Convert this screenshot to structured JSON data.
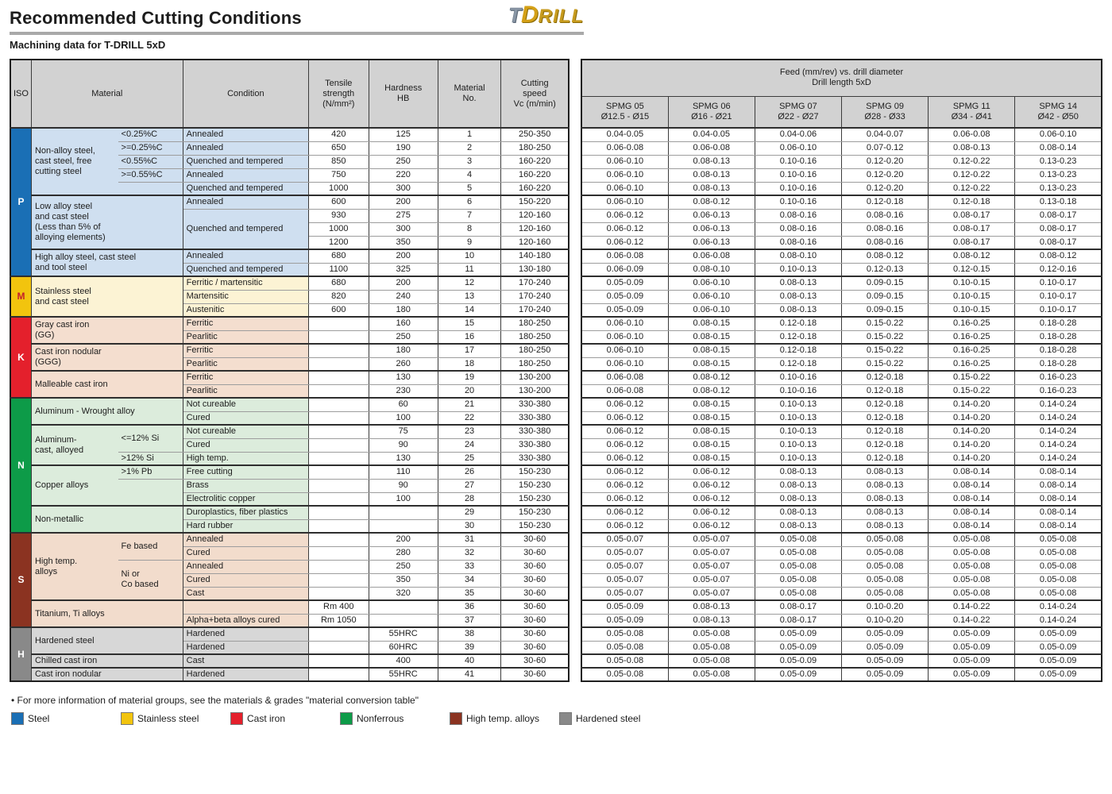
{
  "page": {
    "title": "Recommended Cutting Conditions",
    "subtitle": "Machining data for T-DRILL 5xD",
    "logo": {
      "t": "T",
      "d": "D",
      "rest": "RILL"
    }
  },
  "left_header": {
    "iso": "ISO",
    "material": "Material",
    "condition": "Condition",
    "tensile": "Tensile\nstrength\n(N/mm²)",
    "hardness": "Hardness\nHB",
    "material_no": "Material\nNo.",
    "cutting_speed": "Cutting\nspeed\nVc (m/min)"
  },
  "feed_header": {
    "line1": "Feed (mm/rev) vs. drill diameter",
    "line2": "Drill length 5xD",
    "columns": [
      {
        "name": "SPMG 05",
        "range": "Ø12.5 - Ø15"
      },
      {
        "name": "SPMG 06",
        "range": "Ø16 - Ø21"
      },
      {
        "name": "SPMG 07",
        "range": "Ø22 - Ø27"
      },
      {
        "name": "SPMG 09",
        "range": "Ø28 - Ø33"
      },
      {
        "name": "SPMG 11",
        "range": "Ø34 - Ø41"
      },
      {
        "name": "SPMG 14",
        "range": "Ø42 - Ø50"
      }
    ]
  },
  "sections": [
    {
      "letter": "P",
      "start": 0,
      "count": 11,
      "color": "#1a6fb5",
      "letter_color": "#ffffff",
      "light": "#cfdff0"
    },
    {
      "letter": "M",
      "start": 11,
      "count": 3,
      "color": "#f2c40e",
      "letter_color": "#c5202a",
      "light": "#fcf3d4"
    },
    {
      "letter": "K",
      "start": 14,
      "count": 6,
      "color": "#e4202c",
      "letter_color": "#ffffff",
      "light": "#f4decf"
    },
    {
      "letter": "N",
      "start": 20,
      "count": 10,
      "color": "#0d9b48",
      "letter_color": "#ffffff",
      "light": "#dcecdc"
    },
    {
      "letter": "S",
      "start": 30,
      "count": 7,
      "color": "#8b3321",
      "letter_color": "#ffffff",
      "light": "#f2dccc"
    },
    {
      "letter": "H",
      "start": 37,
      "count": 4,
      "color": "#898989",
      "letter_color": "#ffffff",
      "light": "#d7d7d7"
    }
  ],
  "group_starts": [
    0,
    5,
    9,
    11,
    14,
    16,
    18,
    20,
    22,
    25,
    28,
    30,
    35,
    37,
    39,
    40
  ],
  "rows": [
    {
      "m": {
        "t": "Non-alloy steel,\ncast steel, free\ncutting steel",
        "s": 5,
        "c": 1
      },
      "sb": {
        "t": "<0.25%C"
      },
      "cd": {
        "t": "Annealed"
      },
      "ten": "420",
      "hb": "125",
      "no": "1",
      "vc": "250-350",
      "f": [
        "0.04-0.05",
        "0.04-0.05",
        "0.04-0.06",
        "0.04-0.07",
        "0.06-0.08",
        "0.06-0.10"
      ]
    },
    {
      "sb": {
        "t": ">=0.25%C"
      },
      "cd": {
        "t": "Annealed"
      },
      "ten": "650",
      "hb": "190",
      "no": "2",
      "vc": "180-250",
      "f": [
        "0.06-0.08",
        "0.06-0.08",
        "0.06-0.10",
        "0.07-0.12",
        "0.08-0.13",
        "0.08-0.14"
      ]
    },
    {
      "sb": {
        "t": "<0.55%C"
      },
      "cd": {
        "t": "Quenched and tempered"
      },
      "ten": "850",
      "hb": "250",
      "no": "3",
      "vc": "160-220",
      "f": [
        "0.06-0.10",
        "0.08-0.13",
        "0.10-0.16",
        "0.12-0.20",
        "0.12-0.22",
        "0.13-0.23"
      ]
    },
    {
      "sb": {
        "t": ">=0.55%C"
      },
      "cd": {
        "t": "Annealed"
      },
      "ten": "750",
      "hb": "220",
      "no": "4",
      "vc": "160-220",
      "f": [
        "0.06-0.10",
        "0.08-0.13",
        "0.10-0.16",
        "0.12-0.20",
        "0.12-0.22",
        "0.13-0.23"
      ]
    },
    {
      "sb": {
        "t": ""
      },
      "cd": {
        "t": "Quenched and tempered"
      },
      "ten": "1000",
      "hb": "300",
      "no": "5",
      "vc": "160-220",
      "f": [
        "0.06-0.10",
        "0.08-0.13",
        "0.10-0.16",
        "0.12-0.20",
        "0.12-0.22",
        "0.13-0.23"
      ]
    },
    {
      "m": {
        "t": "Low alloy steel\nand cast steel\n(Less than 5% of\nalloying elements)",
        "s": 4,
        "c": 2
      },
      "cd": {
        "t": "Annealed"
      },
      "ten": "600",
      "hb": "200",
      "no": "6",
      "vc": "150-220",
      "f": [
        "0.06-0.10",
        "0.08-0.12",
        "0.10-0.16",
        "0.12-0.18",
        "0.12-0.18",
        "0.13-0.18"
      ]
    },
    {
      "cd": {
        "t": "Quenched and tempered",
        "s": 3
      },
      "ten": "930",
      "hb": "275",
      "no": "7",
      "vc": "120-160",
      "f": [
        "0.06-0.12",
        "0.06-0.13",
        "0.08-0.16",
        "0.08-0.16",
        "0.08-0.17",
        "0.08-0.17"
      ]
    },
    {
      "ten": "1000",
      "hb": "300",
      "no": "8",
      "vc": "120-160",
      "f": [
        "0.06-0.12",
        "0.06-0.13",
        "0.08-0.16",
        "0.08-0.16",
        "0.08-0.17",
        "0.08-0.17"
      ]
    },
    {
      "ten": "1200",
      "hb": "350",
      "no": "9",
      "vc": "120-160",
      "f": [
        "0.06-0.12",
        "0.06-0.13",
        "0.08-0.16",
        "0.08-0.16",
        "0.08-0.17",
        "0.08-0.17"
      ]
    },
    {
      "m": {
        "t": "High alloy steel, cast steel\nand tool steel",
        "s": 2,
        "c": 2
      },
      "cd": {
        "t": "Annealed"
      },
      "ten": "680",
      "hb": "200",
      "no": "10",
      "vc": "140-180",
      "f": [
        "0.06-0.08",
        "0.06-0.08",
        "0.08-0.10",
        "0.08-0.12",
        "0.08-0.12",
        "0.08-0.12"
      ]
    },
    {
      "cd": {
        "t": "Quenched and tempered"
      },
      "ten": "1100",
      "hb": "325",
      "no": "11",
      "vc": "130-180",
      "f": [
        "0.06-0.09",
        "0.08-0.10",
        "0.10-0.13",
        "0.12-0.13",
        "0.12-0.15",
        "0.12-0.16"
      ]
    },
    {
      "m": {
        "t": "Stainless steel\nand cast steel",
        "s": 3,
        "c": 2
      },
      "cd": {
        "t": "Ferritic / martensitic"
      },
      "ten": "680",
      "hb": "200",
      "no": "12",
      "vc": "170-240",
      "f": [
        "0.05-0.09",
        "0.06-0.10",
        "0.08-0.13",
        "0.09-0.15",
        "0.10-0.15",
        "0.10-0.17"
      ]
    },
    {
      "cd": {
        "t": "Martensitic"
      },
      "ten": "820",
      "hb": "240",
      "no": "13",
      "vc": "170-240",
      "f": [
        "0.05-0.09",
        "0.06-0.10",
        "0.08-0.13",
        "0.09-0.15",
        "0.10-0.15",
        "0.10-0.17"
      ]
    },
    {
      "cd": {
        "t": "Austenitic"
      },
      "ten": "600",
      "hb": "180",
      "no": "14",
      "vc": "170-240",
      "f": [
        "0.05-0.09",
        "0.06-0.10",
        "0.08-0.13",
        "0.09-0.15",
        "0.10-0.15",
        "0.10-0.17"
      ]
    },
    {
      "m": {
        "t": "Gray cast iron\n(GG)",
        "s": 2,
        "c": 2
      },
      "cd": {
        "t": "Ferritic"
      },
      "ten": "",
      "hb": "160",
      "no": "15",
      "vc": "180-250",
      "f": [
        "0.06-0.10",
        "0.08-0.15",
        "0.12-0.18",
        "0.15-0.22",
        "0.16-0.25",
        "0.18-0.28"
      ]
    },
    {
      "cd": {
        "t": "Pearlitic"
      },
      "ten": "",
      "hb": "250",
      "no": "16",
      "vc": "180-250",
      "f": [
        "0.06-0.10",
        "0.08-0.15",
        "0.12-0.18",
        "0.15-0.22",
        "0.16-0.25",
        "0.18-0.28"
      ]
    },
    {
      "m": {
        "t": "Cast iron nodular\n(GGG)",
        "s": 2,
        "c": 2
      },
      "cd": {
        "t": "Ferritic"
      },
      "ten": "",
      "hb": "180",
      "no": "17",
      "vc": "180-250",
      "f": [
        "0.06-0.10",
        "0.08-0.15",
        "0.12-0.18",
        "0.15-0.22",
        "0.16-0.25",
        "0.18-0.28"
      ]
    },
    {
      "cd": {
        "t": "Pearlitic"
      },
      "ten": "",
      "hb": "260",
      "no": "18",
      "vc": "180-250",
      "f": [
        "0.06-0.10",
        "0.08-0.15",
        "0.12-0.18",
        "0.15-0.22",
        "0.16-0.25",
        "0.18-0.28"
      ]
    },
    {
      "m": {
        "t": "Malleable cast iron",
        "s": 2,
        "c": 2
      },
      "cd": {
        "t": "Ferritic"
      },
      "ten": "",
      "hb": "130",
      "no": "19",
      "vc": "130-200",
      "f": [
        "0.06-0.08",
        "0.08-0.12",
        "0.10-0.16",
        "0.12-0.18",
        "0.15-0.22",
        "0.16-0.23"
      ]
    },
    {
      "cd": {
        "t": "Pearlitic"
      },
      "ten": "",
      "hb": "230",
      "no": "20",
      "vc": "130-200",
      "f": [
        "0.06-0.08",
        "0.08-0.12",
        "0.10-0.16",
        "0.12-0.18",
        "0.15-0.22",
        "0.16-0.23"
      ]
    },
    {
      "m": {
        "t": "Aluminum - Wrought alloy",
        "s": 2,
        "c": 2
      },
      "cd": {
        "t": "Not cureable"
      },
      "ten": "",
      "hb": "60",
      "no": "21",
      "vc": "330-380",
      "f": [
        "0.06-0.12",
        "0.08-0.15",
        "0.10-0.13",
        "0.12-0.18",
        "0.14-0.20",
        "0.14-0.24"
      ]
    },
    {
      "cd": {
        "t": "Cured"
      },
      "ten": "",
      "hb": "100",
      "no": "22",
      "vc": "330-380",
      "f": [
        "0.06-0.12",
        "0.08-0.15",
        "0.10-0.13",
        "0.12-0.18",
        "0.14-0.20",
        "0.14-0.24"
      ]
    },
    {
      "m": {
        "t": "Aluminum-\ncast, alloyed",
        "s": 3,
        "c": 1
      },
      "sb": {
        "t": "<=12% Si",
        "s": 2
      },
      "cd": {
        "t": "Not cureable"
      },
      "ten": "",
      "hb": "75",
      "no": "23",
      "vc": "330-380",
      "f": [
        "0.06-0.12",
        "0.08-0.15",
        "0.10-0.13",
        "0.12-0.18",
        "0.14-0.20",
        "0.14-0.24"
      ]
    },
    {
      "cd": {
        "t": "Cured"
      },
      "ten": "",
      "hb": "90",
      "no": "24",
      "vc": "330-380",
      "f": [
        "0.06-0.12",
        "0.08-0.15",
        "0.10-0.13",
        "0.12-0.18",
        "0.14-0.20",
        "0.14-0.24"
      ]
    },
    {
      "sb": {
        "t": ">12% Si"
      },
      "cd": {
        "t": "High temp."
      },
      "ten": "",
      "hb": "130",
      "no": "25",
      "vc": "330-380",
      "f": [
        "0.06-0.12",
        "0.08-0.15",
        "0.10-0.13",
        "0.12-0.18",
        "0.14-0.20",
        "0.14-0.24"
      ]
    },
    {
      "m": {
        "t": "Copper alloys",
        "s": 3,
        "c": 1
      },
      "sb": {
        "t": ">1% Pb"
      },
      "cd": {
        "t": "Free cutting"
      },
      "ten": "",
      "hb": "110",
      "no": "26",
      "vc": "150-230",
      "f": [
        "0.06-0.12",
        "0.06-0.12",
        "0.08-0.13",
        "0.08-0.13",
        "0.08-0.14",
        "0.08-0.14"
      ]
    },
    {
      "sb": {
        "t": "",
        "s": 2
      },
      "cd": {
        "t": "Brass"
      },
      "ten": "",
      "hb": "90",
      "no": "27",
      "vc": "150-230",
      "f": [
        "0.06-0.12",
        "0.06-0.12",
        "0.08-0.13",
        "0.08-0.13",
        "0.08-0.14",
        "0.08-0.14"
      ]
    },
    {
      "cd": {
        "t": "Electrolitic copper"
      },
      "ten": "",
      "hb": "100",
      "no": "28",
      "vc": "150-230",
      "f": [
        "0.06-0.12",
        "0.06-0.12",
        "0.08-0.13",
        "0.08-0.13",
        "0.08-0.14",
        "0.08-0.14"
      ]
    },
    {
      "m": {
        "t": "Non-metallic",
        "s": 2,
        "c": 2
      },
      "cd": {
        "t": "Duroplastics, fiber plastics"
      },
      "ten": "",
      "hb": "",
      "no": "29",
      "vc": "150-230",
      "f": [
        "0.06-0.12",
        "0.06-0.12",
        "0.08-0.13",
        "0.08-0.13",
        "0.08-0.14",
        "0.08-0.14"
      ]
    },
    {
      "cd": {
        "t": "Hard rubber"
      },
      "ten": "",
      "hb": "",
      "no": "30",
      "vc": "150-230",
      "f": [
        "0.06-0.12",
        "0.06-0.12",
        "0.08-0.13",
        "0.08-0.13",
        "0.08-0.14",
        "0.08-0.14"
      ]
    },
    {
      "m": {
        "t": "High temp.\nalloys",
        "s": 5,
        "c": 1
      },
      "sb": {
        "t": "Fe based",
        "s": 2
      },
      "cd": {
        "t": "Annealed"
      },
      "ten": "",
      "hb": "200",
      "no": "31",
      "vc": "30-60",
      "f": [
        "0.05-0.07",
        "0.05-0.07",
        "0.05-0.08",
        "0.05-0.08",
        "0.05-0.08",
        "0.05-0.08"
      ]
    },
    {
      "cd": {
        "t": "Cured"
      },
      "ten": "",
      "hb": "280",
      "no": "32",
      "vc": "30-60",
      "f": [
        "0.05-0.07",
        "0.05-0.07",
        "0.05-0.08",
        "0.05-0.08",
        "0.05-0.08",
        "0.05-0.08"
      ]
    },
    {
      "sb": {
        "t": "Ni or\nCo based",
        "s": 3
      },
      "cd": {
        "t": "Annealed"
      },
      "ten": "",
      "hb": "250",
      "no": "33",
      "vc": "30-60",
      "f": [
        "0.05-0.07",
        "0.05-0.07",
        "0.05-0.08",
        "0.05-0.08",
        "0.05-0.08",
        "0.05-0.08"
      ]
    },
    {
      "cd": {
        "t": "Cured"
      },
      "ten": "",
      "hb": "350",
      "no": "34",
      "vc": "30-60",
      "f": [
        "0.05-0.07",
        "0.05-0.07",
        "0.05-0.08",
        "0.05-0.08",
        "0.05-0.08",
        "0.05-0.08"
      ]
    },
    {
      "cd": {
        "t": "Cast"
      },
      "ten": "",
      "hb": "320",
      "no": "35",
      "vc": "30-60",
      "f": [
        "0.05-0.07",
        "0.05-0.07",
        "0.05-0.08",
        "0.05-0.08",
        "0.05-0.08",
        "0.05-0.08"
      ]
    },
    {
      "m": {
        "t": "Titanium, Ti alloys",
        "s": 2,
        "c": 2
      },
      "cd": {
        "t": ""
      },
      "ten": "Rm 400",
      "hb": "",
      "no": "36",
      "vc": "30-60",
      "f": [
        "0.05-0.09",
        "0.08-0.13",
        "0.08-0.17",
        "0.10-0.20",
        "0.14-0.22",
        "0.14-0.24"
      ]
    },
    {
      "cd": {
        "t": "Alpha+beta alloys cured"
      },
      "ten": "Rm 1050",
      "hb": "",
      "no": "37",
      "vc": "30-60",
      "f": [
        "0.05-0.09",
        "0.08-0.13",
        "0.08-0.17",
        "0.10-0.20",
        "0.14-0.22",
        "0.14-0.24"
      ]
    },
    {
      "m": {
        "t": "Hardened steel",
        "s": 2,
        "c": 2
      },
      "cd": {
        "t": "Hardened"
      },
      "ten": "",
      "hb": "55HRC",
      "no": "38",
      "vc": "30-60",
      "f": [
        "0.05-0.08",
        "0.05-0.08",
        "0.05-0.09",
        "0.05-0.09",
        "0.05-0.09",
        "0.05-0.09"
      ]
    },
    {
      "cd": {
        "t": "Hardened"
      },
      "ten": "",
      "hb": "60HRC",
      "no": "39",
      "vc": "30-60",
      "f": [
        "0.05-0.08",
        "0.05-0.08",
        "0.05-0.09",
        "0.05-0.09",
        "0.05-0.09",
        "0.05-0.09"
      ]
    },
    {
      "m": {
        "t": "Chilled cast iron",
        "s": 1,
        "c": 2
      },
      "cd": {
        "t": "Cast"
      },
      "ten": "",
      "hb": "400",
      "no": "40",
      "vc": "30-60",
      "f": [
        "0.05-0.08",
        "0.05-0.08",
        "0.05-0.09",
        "0.05-0.09",
        "0.05-0.09",
        "0.05-0.09"
      ]
    },
    {
      "m": {
        "t": "Cast iron nodular",
        "s": 1,
        "c": 2
      },
      "cd": {
        "t": "Hardened"
      },
      "ten": "",
      "hb": "55HRC",
      "no": "41",
      "vc": "30-60",
      "f": [
        "0.05-0.08",
        "0.05-0.08",
        "0.05-0.09",
        "0.05-0.09",
        "0.05-0.09",
        "0.05-0.09"
      ]
    }
  ],
  "footer": {
    "note": "• For more information of material groups, see the materials & grades \"material conversion table\"",
    "legend": [
      {
        "label": "Steel",
        "color": "#1a6fb5"
      },
      {
        "label": "Stainless steel",
        "color": "#f2c40e"
      },
      {
        "label": "Cast iron",
        "color": "#e4202c"
      },
      {
        "label": "Nonferrous",
        "color": "#0d9b48"
      },
      {
        "label": "High temp. alloys",
        "color": "#8b3321"
      },
      {
        "label": "Hardened steel",
        "color": "#898989"
      }
    ]
  }
}
